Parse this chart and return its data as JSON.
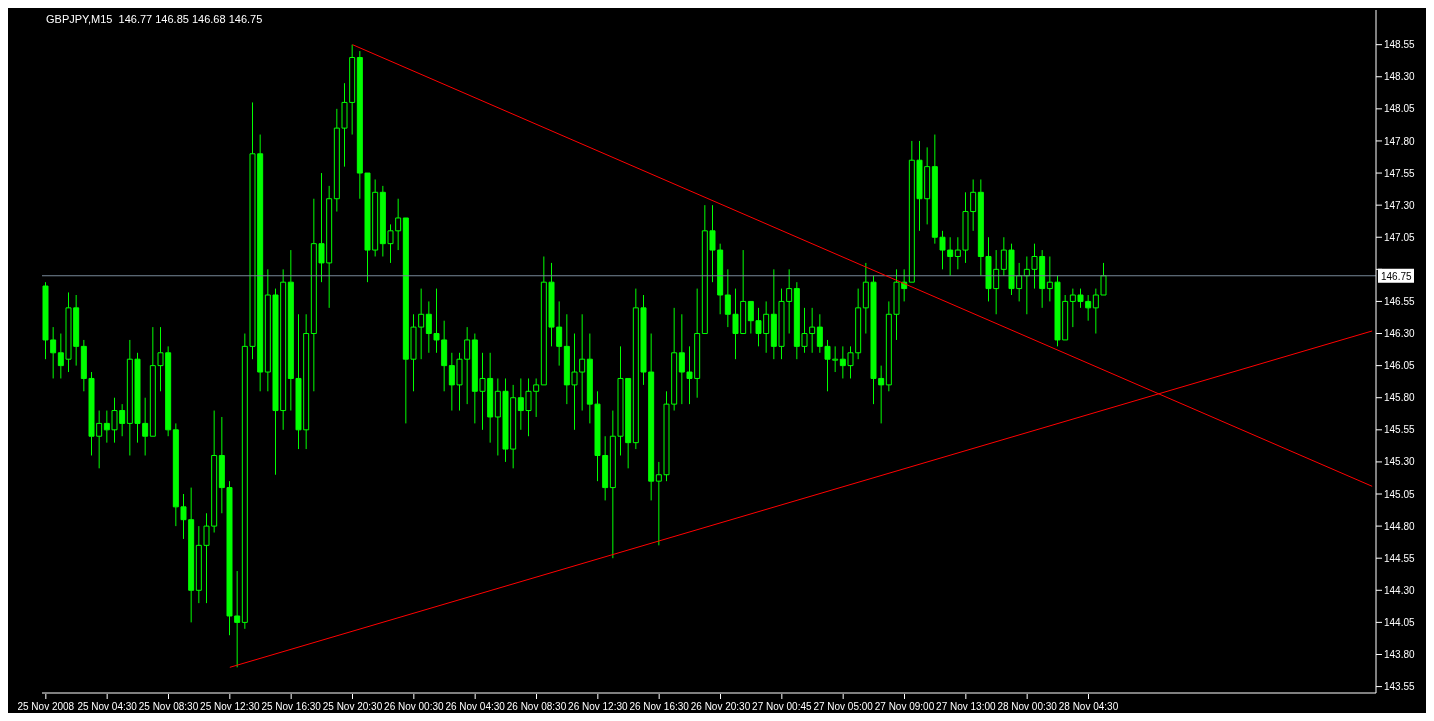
{
  "chart_data": {
    "type": "candlestick",
    "title": "GBPJPY,M15  146.77 146.85 146.68 146.75",
    "color": "#00ff00",
    "categories": [
      "25 Nov 2008",
      null,
      null,
      null,
      null,
      null,
      null,
      null,
      "25 Nov 04:30",
      null,
      null,
      null,
      null,
      null,
      null,
      null,
      "25 Nov 08:30",
      null,
      null,
      null,
      null,
      null,
      null,
      null,
      "25 Nov 12:30",
      null,
      null,
      null,
      null,
      null,
      null,
      null,
      "25 Nov 16:30",
      null,
      null,
      null,
      null,
      null,
      null,
      null,
      "25 Nov 20:30",
      null,
      null,
      null,
      null,
      null,
      null,
      null,
      "26 Nov 00:30",
      null,
      null,
      null,
      null,
      null,
      null,
      null,
      "26 Nov 04:30",
      null,
      null,
      null,
      null,
      null,
      null,
      null,
      "26 Nov 08:30",
      null,
      null,
      null,
      null,
      null,
      null,
      null,
      "26 Nov 12:30",
      null,
      null,
      null,
      null,
      null,
      null,
      null,
      "26 Nov 16:30",
      null,
      null,
      null,
      null,
      null,
      null,
      null,
      "26 Nov 20:30",
      null,
      null,
      null,
      null,
      null,
      null,
      null,
      "27 Nov 00:45",
      null,
      null,
      null,
      null,
      null,
      null,
      null,
      "27 Nov 05:00",
      null,
      null,
      null,
      null,
      null,
      null,
      null,
      "27 Nov 09:00",
      null,
      null,
      null,
      null,
      null,
      null,
      null,
      "27 Nov 13:00",
      null,
      null,
      null,
      null,
      null,
      null,
      null,
      "28 Nov 00:30",
      null,
      null,
      null,
      null,
      null,
      null,
      null,
      "28 Nov 04:30",
      null,
      null,
      null,
      null,
      null,
      null,
      null,
      null,
      null,
      null,
      null,
      null,
      null,
      null,
      null,
      null,
      null,
      null,
      null,
      null,
      null,
      null,
      null,
      null,
      null,
      null,
      null,
      null,
      null,
      null,
      null,
      null,
      null,
      null,
      null,
      null,
      null
    ],
    "ohlc": [
      [
        146.67,
        146.7,
        146.1,
        146.25
      ],
      [
        146.25,
        146.35,
        145.95,
        146.15
      ],
      [
        146.15,
        146.3,
        145.95,
        146.05
      ],
      [
        146.1,
        146.62,
        146.0,
        146.5
      ],
      [
        146.5,
        146.6,
        146.05,
        146.2
      ],
      [
        146.2,
        146.25,
        145.85,
        145.95
      ],
      [
        145.95,
        146.0,
        145.35,
        145.5
      ],
      [
        145.5,
        145.7,
        145.25,
        145.6
      ],
      [
        145.6,
        145.7,
        145.45,
        145.55
      ],
      [
        145.55,
        145.8,
        145.45,
        145.7
      ],
      [
        145.7,
        145.75,
        145.5,
        145.6
      ],
      [
        145.6,
        146.25,
        145.35,
        146.1
      ],
      [
        146.1,
        146.15,
        145.45,
        145.6
      ],
      [
        145.6,
        145.8,
        145.35,
        145.5
      ],
      [
        145.5,
        146.35,
        145.5,
        146.05
      ],
      [
        146.05,
        146.35,
        145.85,
        146.15
      ],
      [
        146.15,
        146.2,
        145.5,
        145.55
      ],
      [
        145.55,
        145.6,
        144.8,
        144.95
      ],
      [
        144.95,
        145.05,
        144.7,
        144.85
      ],
      [
        144.85,
        145.1,
        144.05,
        144.3
      ],
      [
        144.3,
        144.8,
        144.2,
        144.65
      ],
      [
        144.65,
        144.9,
        144.2,
        144.8
      ],
      [
        144.8,
        145.7,
        144.75,
        145.35
      ],
      [
        145.35,
        145.65,
        144.9,
        145.1
      ],
      [
        145.1,
        145.15,
        143.95,
        144.1
      ],
      [
        144.1,
        144.45,
        143.7,
        144.05
      ],
      [
        144.05,
        146.3,
        144.0,
        146.2
      ],
      [
        146.2,
        148.1,
        146.1,
        147.7
      ],
      [
        147.7,
        147.85,
        145.85,
        146.0
      ],
      [
        146.0,
        146.8,
        145.85,
        146.6
      ],
      [
        146.6,
        146.65,
        145.2,
        145.7
      ],
      [
        145.7,
        146.8,
        145.55,
        146.7
      ],
      [
        146.7,
        146.95,
        145.7,
        145.95
      ],
      [
        145.95,
        146.45,
        145.4,
        145.55
      ],
      [
        145.55,
        146.45,
        145.4,
        146.3
      ],
      [
        146.3,
        147.35,
        145.85,
        147.0
      ],
      [
        147.0,
        147.55,
        146.7,
        146.85
      ],
      [
        146.85,
        147.45,
        146.5,
        147.35
      ],
      [
        147.35,
        148.05,
        147.25,
        147.9
      ],
      [
        147.9,
        148.25,
        147.6,
        148.1
      ],
      [
        148.1,
        148.55,
        147.85,
        148.45
      ],
      [
        148.45,
        148.5,
        147.35,
        147.55
      ],
      [
        147.55,
        147.55,
        146.7,
        146.95
      ],
      [
        146.95,
        147.5,
        146.9,
        147.4
      ],
      [
        147.4,
        147.45,
        146.9,
        147.0
      ],
      [
        147.0,
        147.15,
        146.85,
        147.1
      ],
      [
        147.1,
        147.35,
        146.95,
        147.2
      ],
      [
        147.2,
        147.2,
        145.6,
        146.1
      ],
      [
        146.1,
        146.45,
        145.85,
        146.35
      ],
      [
        146.35,
        146.65,
        146.1,
        146.45
      ],
      [
        146.45,
        146.55,
        146.15,
        146.3
      ],
      [
        146.3,
        146.65,
        146.15,
        146.25
      ],
      [
        146.25,
        146.4,
        145.85,
        146.05
      ],
      [
        146.05,
        146.15,
        145.7,
        145.9
      ],
      [
        145.9,
        146.15,
        145.7,
        146.1
      ],
      [
        146.1,
        146.35,
        145.75,
        146.25
      ],
      [
        146.25,
        146.3,
        145.6,
        145.85
      ],
      [
        145.85,
        146.15,
        145.55,
        145.95
      ],
      [
        145.95,
        146.15,
        145.45,
        145.65
      ],
      [
        145.65,
        145.95,
        145.35,
        145.85
      ],
      [
        145.85,
        145.95,
        145.3,
        145.4
      ],
      [
        145.4,
        145.9,
        145.25,
        145.8
      ],
      [
        145.8,
        145.95,
        145.55,
        145.7
      ],
      [
        145.7,
        145.95,
        145.5,
        145.85
      ],
      [
        145.85,
        145.95,
        145.65,
        145.9
      ],
      [
        145.9,
        146.9,
        145.9,
        146.7
      ],
      [
        146.7,
        146.85,
        146.2,
        146.35
      ],
      [
        146.35,
        146.55,
        146.05,
        146.2
      ],
      [
        146.2,
        146.45,
        145.75,
        145.9
      ],
      [
        145.9,
        146.3,
        145.55,
        146.0
      ],
      [
        146.0,
        146.45,
        145.7,
        146.1
      ],
      [
        146.1,
        146.3,
        145.6,
        145.75
      ],
      [
        145.75,
        145.85,
        145.15,
        145.35
      ],
      [
        145.35,
        145.5,
        145.0,
        145.1
      ],
      [
        145.1,
        145.7,
        144.55,
        145.5
      ],
      [
        145.5,
        146.2,
        145.35,
        145.95
      ],
      [
        145.95,
        145.95,
        145.25,
        145.45
      ],
      [
        145.45,
        146.65,
        145.4,
        146.5
      ],
      [
        146.5,
        146.6,
        145.9,
        146.0
      ],
      [
        146.0,
        146.3,
        145.0,
        145.15
      ],
      [
        145.15,
        145.3,
        144.65,
        145.2
      ],
      [
        145.2,
        145.85,
        145.15,
        145.75
      ],
      [
        145.75,
        146.5,
        145.7,
        146.15
      ],
      [
        146.15,
        146.45,
        145.75,
        146.0
      ],
      [
        146.0,
        146.2,
        145.75,
        145.95
      ],
      [
        145.95,
        146.65,
        145.8,
        146.3
      ],
      [
        146.3,
        147.3,
        146.3,
        147.1
      ],
      [
        147.1,
        147.3,
        146.7,
        146.95
      ],
      [
        146.95,
        147.0,
        146.45,
        146.6
      ],
      [
        146.6,
        146.8,
        146.35,
        146.45
      ],
      [
        146.45,
        146.65,
        146.1,
        146.3
      ],
      [
        146.3,
        146.95,
        146.3,
        146.55
      ],
      [
        146.55,
        146.55,
        146.3,
        146.4
      ],
      [
        146.4,
        146.5,
        146.2,
        146.3
      ],
      [
        146.3,
        146.55,
        146.15,
        146.45
      ],
      [
        146.45,
        146.8,
        146.1,
        146.2
      ],
      [
        146.2,
        146.65,
        146.1,
        146.55
      ],
      [
        146.55,
        146.8,
        146.3,
        146.65
      ],
      [
        146.65,
        146.7,
        146.1,
        146.2
      ],
      [
        146.2,
        146.5,
        146.15,
        146.3
      ],
      [
        146.3,
        146.5,
        146.15,
        146.35
      ],
      [
        146.35,
        146.45,
        146.15,
        146.2
      ],
      [
        146.2,
        146.25,
        145.85,
        146.1
      ],
      [
        146.1,
        146.2,
        146.0,
        146.1
      ],
      [
        146.1,
        146.2,
        145.95,
        146.05
      ],
      [
        146.05,
        146.2,
        145.95,
        146.15
      ],
      [
        146.15,
        146.65,
        146.1,
        146.5
      ],
      [
        146.5,
        146.85,
        146.3,
        146.7
      ],
      [
        146.7,
        146.75,
        145.75,
        145.95
      ],
      [
        145.95,
        146.05,
        145.6,
        145.9
      ],
      [
        145.9,
        146.55,
        145.85,
        146.45
      ],
      [
        146.45,
        146.8,
        146.25,
        146.7
      ],
      [
        146.7,
        146.8,
        146.55,
        146.65
      ],
      [
        146.7,
        147.8,
        146.7,
        147.65
      ],
      [
        147.65,
        147.8,
        147.1,
        147.35
      ],
      [
        147.35,
        147.75,
        147.15,
        147.6
      ],
      [
        147.6,
        147.85,
        147.0,
        147.05
      ],
      [
        147.05,
        147.1,
        146.8,
        146.95
      ],
      [
        146.95,
        147.05,
        146.75,
        146.9
      ],
      [
        146.9,
        147.05,
        146.8,
        146.95
      ],
      [
        146.95,
        147.4,
        146.85,
        147.25
      ],
      [
        147.25,
        147.5,
        147.1,
        147.4
      ],
      [
        147.4,
        147.5,
        146.75,
        146.9
      ],
      [
        146.9,
        147.05,
        146.55,
        146.65
      ],
      [
        146.65,
        146.95,
        146.45,
        146.8
      ],
      [
        146.8,
        147.05,
        146.75,
        146.95
      ],
      [
        146.95,
        147.0,
        146.6,
        146.65
      ],
      [
        146.65,
        146.85,
        146.55,
        146.75
      ],
      [
        146.75,
        146.9,
        146.45,
        146.8
      ],
      [
        146.8,
        147.0,
        146.65,
        146.9
      ],
      [
        146.9,
        146.95,
        146.5,
        146.65
      ],
      [
        146.65,
        146.9,
        146.55,
        146.7
      ],
      [
        146.7,
        146.75,
        146.2,
        146.25
      ],
      [
        146.25,
        146.6,
        146.25,
        146.55
      ],
      [
        146.55,
        146.65,
        146.35,
        146.6
      ],
      [
        146.6,
        146.65,
        146.5,
        146.55
      ],
      [
        146.55,
        146.6,
        146.4,
        146.5
      ],
      [
        146.5,
        146.65,
        146.3,
        146.6
      ],
      [
        146.6,
        146.85,
        146.6,
        146.75
      ],
      null,
      null,
      null,
      null,
      null,
      null,
      null,
      null,
      null,
      null,
      null,
      null,
      null,
      null,
      null,
      null,
      null,
      null,
      null,
      null,
      null,
      null,
      null,
      null,
      null,
      null,
      null,
      null,
      null,
      null,
      null,
      null,
      null,
      null,
      null
    ],
    "series": [
      {
        "type": "line",
        "color": "#ff0000",
        "values": [
          null,
          null,
          null,
          null,
          null,
          null,
          null,
          null,
          null,
          null,
          null,
          null,
          null,
          null,
          null,
          null,
          null,
          null,
          null,
          null,
          null,
          null,
          null,
          null,
          null,
          null,
          null,
          null,
          null,
          null,
          null,
          null,
          null,
          null,
          null,
          null,
          null,
          null,
          null,
          null,
          148.55,
          null,
          null,
          null,
          null,
          null,
          null,
          null,
          null,
          null,
          null,
          null,
          null,
          null,
          null,
          null,
          null,
          null,
          null,
          null,
          null,
          null,
          null,
          null,
          null,
          null,
          null,
          null,
          null,
          null,
          null,
          null,
          null,
          null,
          null,
          null,
          null,
          null,
          null,
          null,
          null,
          null,
          null,
          null,
          null,
          null,
          null,
          null,
          null,
          null,
          null,
          null,
          null,
          null,
          null,
          null,
          null,
          null,
          null,
          null,
          null,
          null,
          null,
          null,
          null,
          null,
          null,
          null,
          null,
          null,
          null,
          null,
          null,
          null,
          null,
          null,
          null,
          null,
          null,
          null,
          null,
          null,
          null,
          null,
          null,
          null,
          null,
          null,
          null,
          null,
          null,
          null,
          null,
          null,
          null,
          null,
          null,
          null,
          null,
          null,
          null,
          null,
          null,
          null,
          null,
          null,
          null,
          null,
          null,
          null,
          null,
          null,
          null,
          null,
          null,
          null,
          null,
          null,
          null,
          null,
          null,
          null,
          null,
          null,
          null,
          null,
          null,
          null,
          null,
          null,
          null,
          null,
          null,
          145.11
        ]
      },
      {
        "type": "line",
        "color": "#ff0000",
        "values": [
          null,
          null,
          null,
          null,
          null,
          null,
          null,
          null,
          null,
          null,
          null,
          null,
          null,
          null,
          null,
          null,
          null,
          null,
          null,
          null,
          null,
          null,
          null,
          null,
          143.7,
          null,
          null,
          null,
          null,
          null,
          null,
          null,
          null,
          null,
          null,
          null,
          null,
          null,
          null,
          null,
          null,
          null,
          null,
          null,
          null,
          null,
          null,
          null,
          null,
          null,
          null,
          null,
          null,
          null,
          null,
          null,
          null,
          null,
          null,
          null,
          null,
          null,
          null,
          null,
          null,
          null,
          null,
          null,
          null,
          null,
          null,
          null,
          null,
          null,
          null,
          null,
          null,
          null,
          null,
          null,
          null,
          null,
          null,
          null,
          null,
          null,
          null,
          null,
          null,
          null,
          null,
          null,
          null,
          null,
          null,
          null,
          null,
          null,
          null,
          null,
          null,
          null,
          null,
          null,
          null,
          null,
          null,
          null,
          null,
          null,
          null,
          null,
          null,
          null,
          null,
          null,
          null,
          null,
          null,
          null,
          null,
          null,
          null,
          null,
          null,
          null,
          null,
          null,
          null,
          null,
          null,
          null,
          null,
          null,
          null,
          null,
          null,
          null,
          null,
          null,
          null,
          null,
          null,
          null,
          null,
          null,
          null,
          null,
          null,
          null,
          null,
          null,
          null,
          null,
          null,
          null,
          null,
          null,
          null,
          null,
          null,
          null,
          null,
          null,
          null,
          null,
          null,
          null,
          null,
          null,
          null,
          null,
          null,
          146.32
        ]
      }
    ],
    "ylim": [
      143.5,
      148.82
    ],
    "yticks": [
      143.55,
      {
        "value": 143.8,
        "label": "143.80"
      },
      144.05,
      {
        "value": 144.3,
        "label": "144.30"
      },
      144.55,
      {
        "value": 144.8,
        "label": "144.80"
      },
      145.05,
      {
        "value": 145.3,
        "label": "145.30"
      },
      145.55,
      {
        "value": 145.8,
        "label": "145.80"
      },
      146.05,
      {
        "value": 146.3,
        "label": "146.30"
      },
      146.55,
      {
        "value": 146.8,
        "label": null
      },
      147.05,
      {
        "value": 147.3,
        "label": "147.30"
      },
      147.55,
      {
        "value": 147.8,
        "label": "147.80"
      },
      148.05,
      {
        "value": 148.3,
        "label": "148.30"
      },
      148.55
    ],
    "ref_lines": [
      {
        "axis": "y",
        "value": 146.75,
        "label": "146.75",
        "color": "#778899"
      }
    ]
  }
}
